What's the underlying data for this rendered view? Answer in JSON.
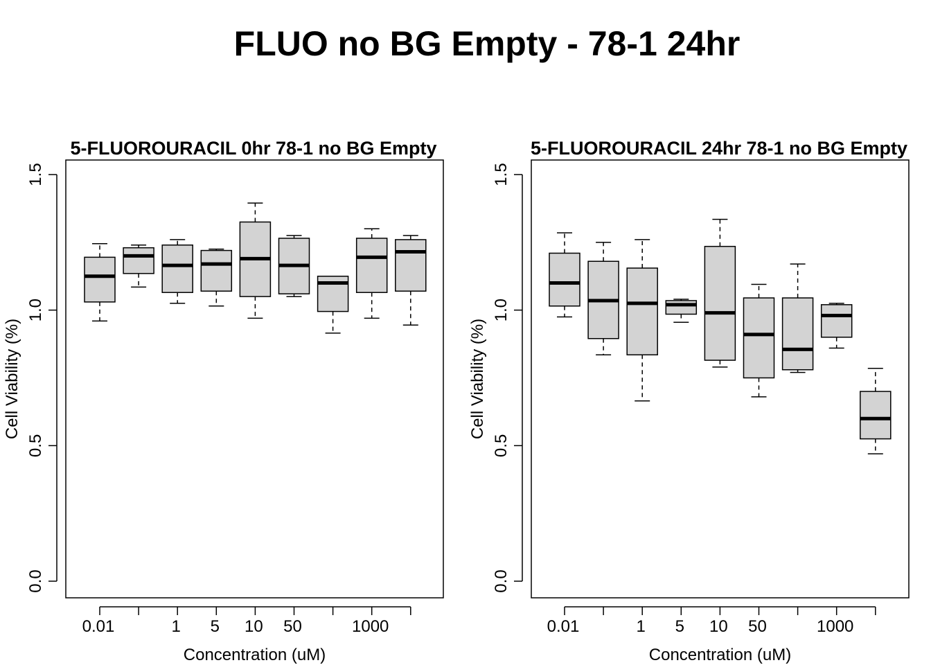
{
  "main_title": "FLUO no BG Empty - 78-1 24hr",
  "colors": {
    "box_fill": "#d3d3d3",
    "stroke": "#000000",
    "background": "#ffffff"
  },
  "chart_data": [
    {
      "type": "box",
      "title": "5-FLUOROURACIL 0hr 78-1 no BG Empty",
      "xlabel": "Concentration (uM)",
      "ylabel": "Cell Viability (%)",
      "ylim": [
        0,
        1.5
      ],
      "yticks": [
        "0.0",
        "0.5",
        "1.0",
        "1.5"
      ],
      "categories": [
        "0.01",
        "",
        "1",
        "5",
        "10",
        "50",
        "",
        "1000",
        ""
      ],
      "boxes": [
        {
          "lw": 0.96,
          "q1": 1.03,
          "med": 1.125,
          "q3": 1.195,
          "uw": 1.245
        },
        {
          "lw": 1.085,
          "q1": 1.135,
          "med": 1.2,
          "q3": 1.23,
          "uw": 1.24
        },
        {
          "lw": 1.025,
          "q1": 1.065,
          "med": 1.165,
          "q3": 1.24,
          "uw": 1.26
        },
        {
          "lw": 1.015,
          "q1": 1.07,
          "med": 1.17,
          "q3": 1.22,
          "uw": 1.225
        },
        {
          "lw": 0.97,
          "q1": 1.05,
          "med": 1.19,
          "q3": 1.325,
          "uw": 1.395
        },
        {
          "lw": 1.05,
          "q1": 1.06,
          "med": 1.165,
          "q3": 1.265,
          "uw": 1.275
        },
        {
          "lw": 0.915,
          "q1": 0.995,
          "med": 1.1,
          "q3": 1.125,
          "uw": 1.125
        },
        {
          "lw": 0.97,
          "q1": 1.065,
          "med": 1.195,
          "q3": 1.265,
          "uw": 1.3
        },
        {
          "lw": 0.945,
          "q1": 1.07,
          "med": 1.215,
          "q3": 1.26,
          "uw": 1.275
        }
      ]
    },
    {
      "type": "box",
      "title": "5-FLUOROURACIL 24hr 78-1 no BG Empty",
      "xlabel": "Concentration (uM)",
      "ylabel": "Cell Viability (%)",
      "ylim": [
        0,
        1.5
      ],
      "yticks": [
        "0.0",
        "0.5",
        "1.0",
        "1.5"
      ],
      "categories": [
        "0.01",
        "",
        "1",
        "5",
        "10",
        "50",
        "",
        "1000",
        ""
      ],
      "boxes": [
        {
          "lw": 0.975,
          "q1": 1.015,
          "med": 1.1,
          "q3": 1.21,
          "uw": 1.285
        },
        {
          "lw": 0.835,
          "q1": 0.895,
          "med": 1.035,
          "q3": 1.18,
          "uw": 1.25
        },
        {
          "lw": 0.665,
          "q1": 0.835,
          "med": 1.025,
          "q3": 1.155,
          "uw": 1.26
        },
        {
          "lw": 0.955,
          "q1": 0.985,
          "med": 1.02,
          "q3": 1.035,
          "uw": 1.04
        },
        {
          "lw": 0.79,
          "q1": 0.815,
          "med": 0.99,
          "q3": 1.235,
          "uw": 1.335
        },
        {
          "lw": 0.68,
          "q1": 0.75,
          "med": 0.91,
          "q3": 1.045,
          "uw": 1.095
        },
        {
          "lw": 0.77,
          "q1": 0.78,
          "med": 0.855,
          "q3": 1.045,
          "uw": 1.17
        },
        {
          "lw": 0.86,
          "q1": 0.9,
          "med": 0.98,
          "q3": 1.02,
          "uw": 1.025
        },
        {
          "lw": 0.47,
          "q1": 0.525,
          "med": 0.6,
          "q3": 0.7,
          "uw": 0.785
        }
      ]
    }
  ]
}
